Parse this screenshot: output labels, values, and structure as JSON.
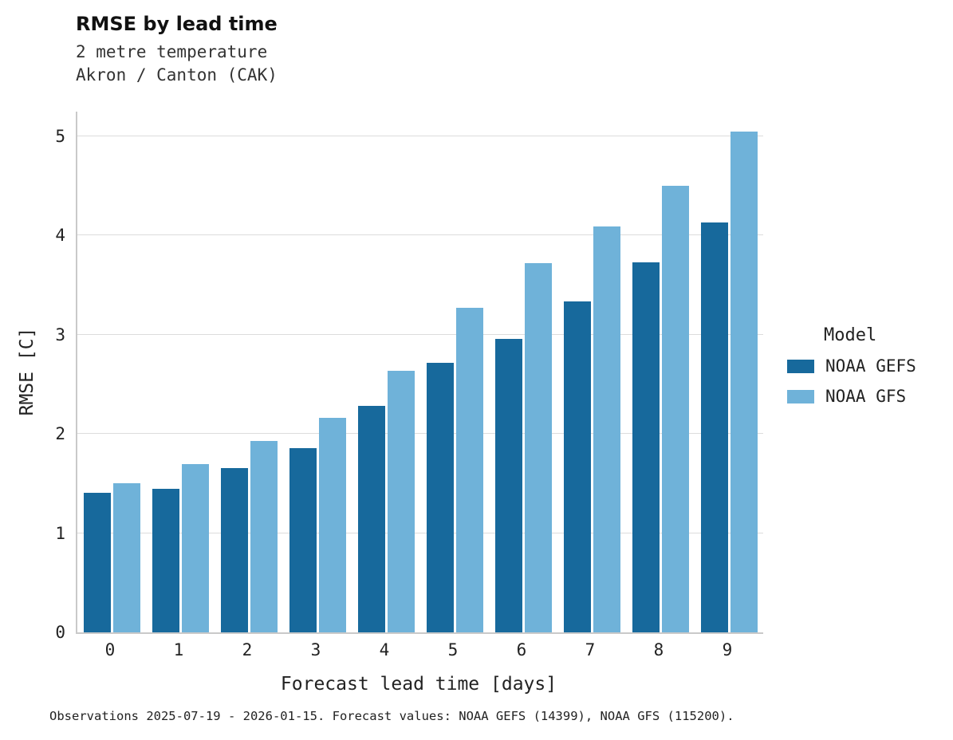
{
  "header": {
    "title": "RMSE by lead time",
    "subtitle1": "2 metre temperature",
    "subtitle2": "Akron / Canton (CAK)"
  },
  "legend": {
    "title": "Model",
    "entries": [
      {
        "label": "NOAA GEFS",
        "color": "#17699c"
      },
      {
        "label": "NOAA GFS",
        "color": "#6fb2d9"
      }
    ]
  },
  "caption": "Observations 2025-07-19 - 2026-01-15. Forecast values: NOAA GEFS (14399), NOAA GFS (115200).",
  "chart_data": {
    "type": "bar",
    "title": "RMSE by lead time",
    "subtitle": "2 metre temperature — Akron / Canton (CAK)",
    "xlabel": "Forecast lead time [days]",
    "ylabel": "RMSE [C]",
    "categories": [
      "0",
      "1",
      "2",
      "3",
      "4",
      "5",
      "6",
      "7",
      "8",
      "9"
    ],
    "series": [
      {
        "name": "NOAA GEFS",
        "color": "#17699c",
        "values": [
          1.41,
          1.45,
          1.66,
          1.86,
          2.28,
          2.72,
          2.96,
          3.34,
          3.73,
          4.13
        ]
      },
      {
        "name": "NOAA GFS",
        "color": "#6fb2d9",
        "values": [
          1.5,
          1.7,
          1.93,
          2.16,
          2.64,
          3.27,
          3.72,
          4.09,
          4.5,
          5.05
        ]
      }
    ],
    "ylim": [
      0,
      5.25
    ],
    "yticks": [
      0,
      1,
      2,
      3,
      4,
      5
    ],
    "grid": true,
    "legend_position": "right"
  }
}
